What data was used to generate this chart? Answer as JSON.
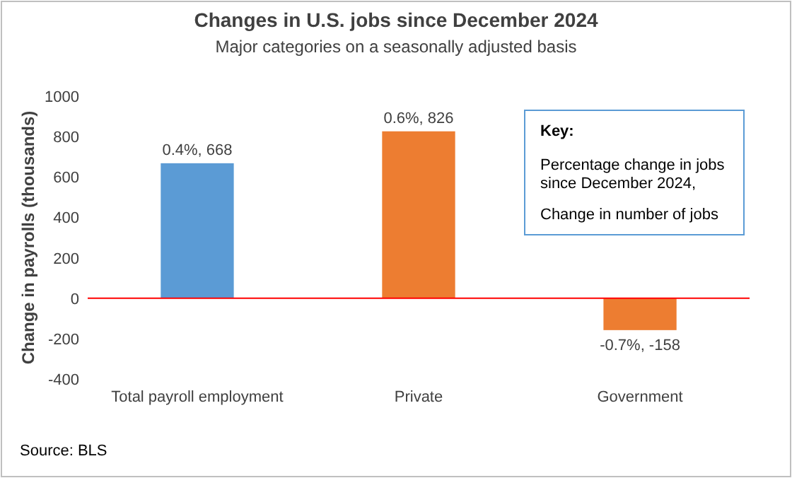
{
  "chart_data": {
    "type": "bar",
    "title": "Changes in U.S. jobs since December 2024",
    "subtitle": "Major categories on a seasonally adjusted basis",
    "ylabel": "Change in payrolls (thousands)",
    "categories": [
      "Total payroll employment",
      "Private",
      "Government"
    ],
    "values": [
      668,
      826,
      -158
    ],
    "colors": [
      "#5b9bd5",
      "#ed7d31",
      "#ed7d31"
    ],
    "value_labels": [
      "0.4%, 668",
      "0.6%, 826",
      "-0.7%, -158"
    ],
    "ylim": [
      -400,
      1000
    ],
    "yticks": [
      -400,
      -200,
      0,
      200,
      400,
      600,
      800,
      1000
    ],
    "grid": false,
    "ref_lines": [
      {
        "axis": "y",
        "value": 0,
        "color": "#ff0000"
      }
    ],
    "annotations": [
      "Key:",
      "Percentage change in jobs since December 2024,",
      "Change in number of jobs",
      "Source: BLS"
    ]
  }
}
